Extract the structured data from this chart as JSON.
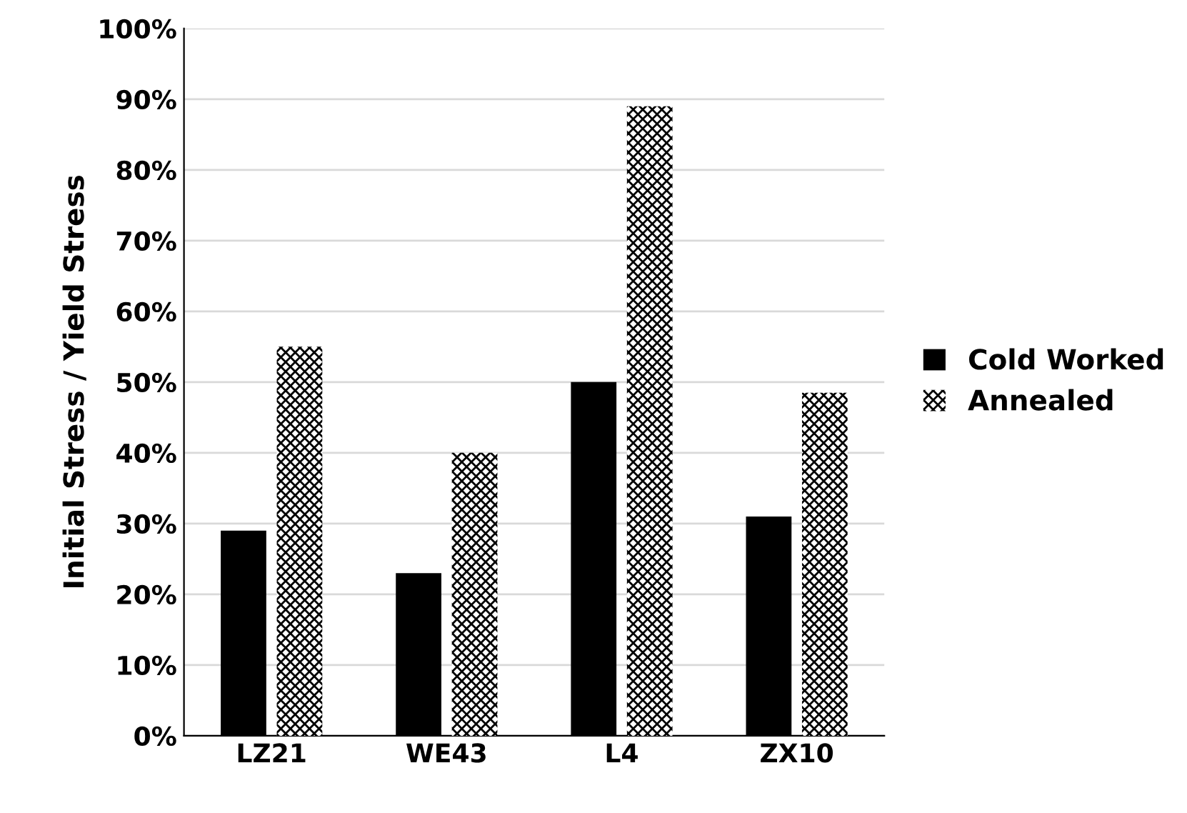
{
  "chart_data": {
    "type": "bar",
    "ylabel": "Initial Stress / Yield Stress",
    "categories": [
      "LZ21",
      "WE43",
      "L4",
      "ZX10"
    ],
    "series": [
      {
        "name": "Cold Worked",
        "color": "#000000",
        "values": [
          29,
          23,
          50,
          31
        ]
      },
      {
        "name": "Annealed",
        "color": "#ffffff",
        "values": [
          55,
          40,
          89,
          48.5
        ]
      }
    ],
    "ylim": [
      0,
      100
    ],
    "yticks": [
      {
        "value": 0,
        "label": "0%"
      },
      {
        "value": 10,
        "label": "10%"
      },
      {
        "value": 20,
        "label": "20%"
      },
      {
        "value": 30,
        "label": "30%"
      },
      {
        "value": 40,
        "label": "40%"
      },
      {
        "value": 50,
        "label": "50%"
      },
      {
        "value": 60,
        "label": "60%"
      },
      {
        "value": 70,
        "label": "70%"
      },
      {
        "value": 80,
        "label": "80%"
      },
      {
        "value": 90,
        "label": "90%"
      },
      {
        "value": 100,
        "label": "100%"
      }
    ],
    "grid": "y",
    "legend": "right"
  }
}
